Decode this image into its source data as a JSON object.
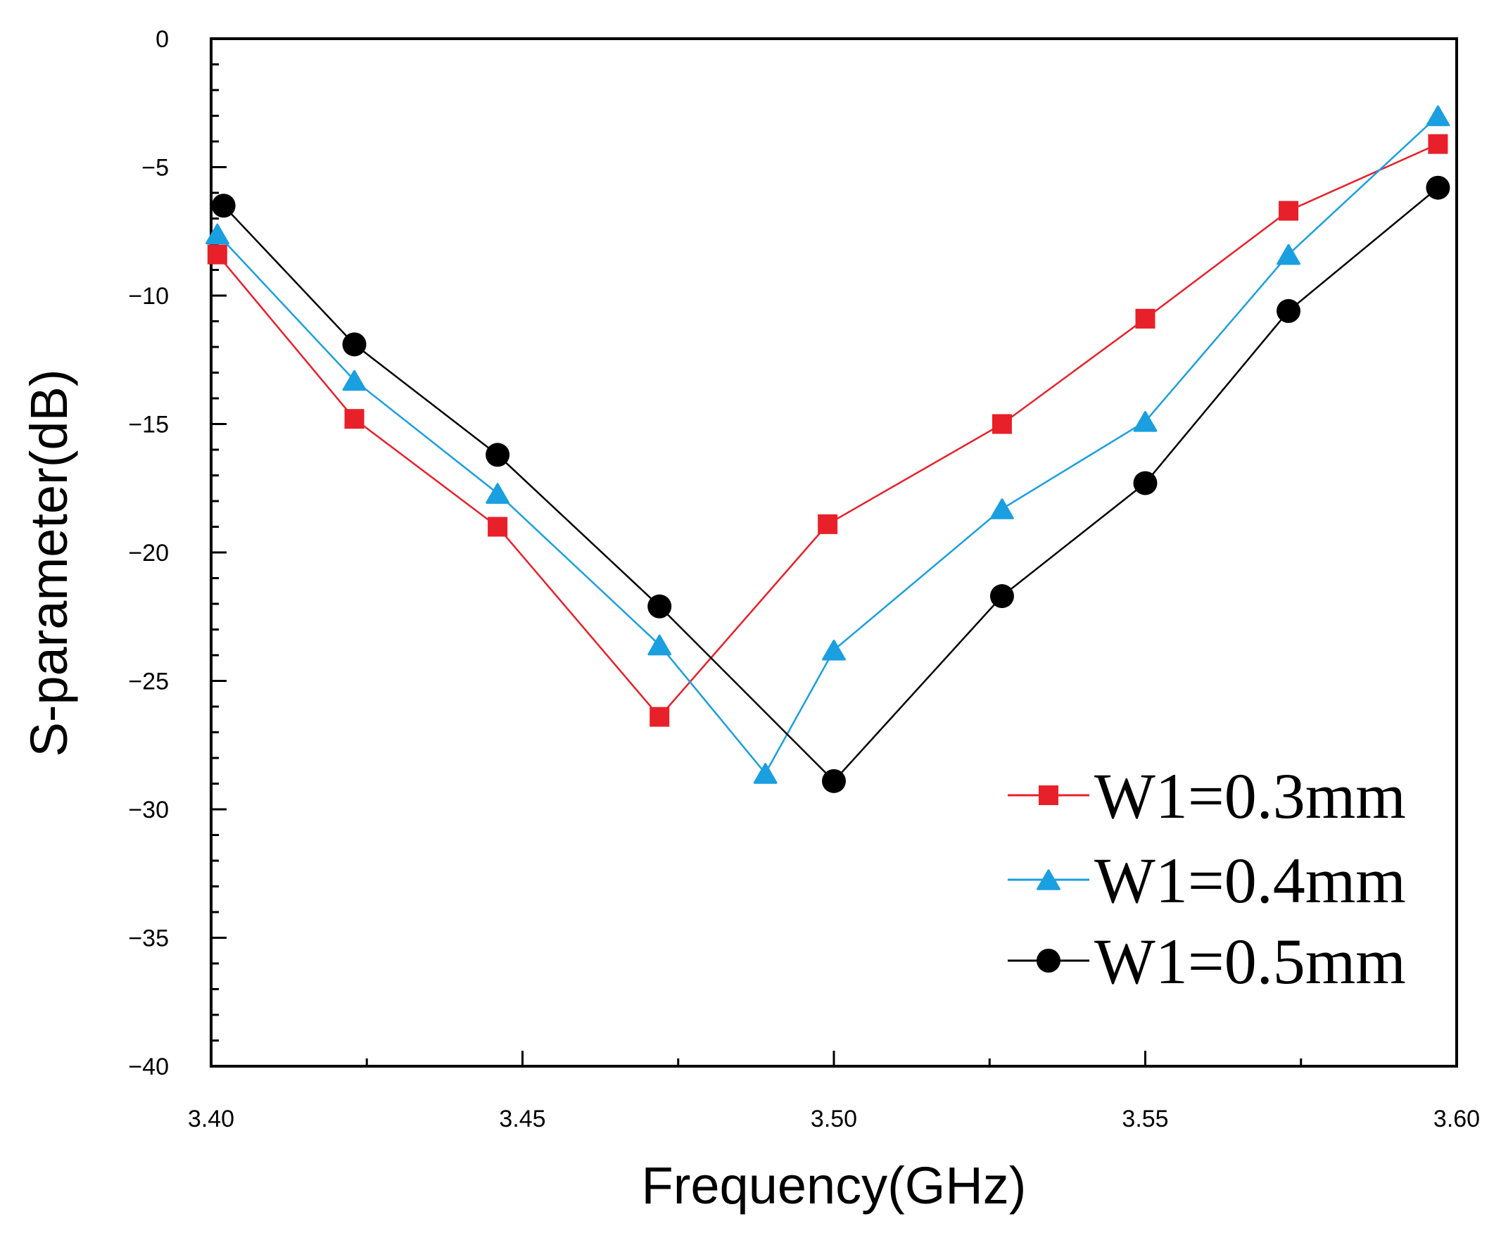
{
  "chart_data": {
    "type": "line",
    "title": "",
    "xlabel": "Frequency(GHz)",
    "ylabel": "S-parameter(dB)",
    "xlim": [
      3.4,
      3.6
    ],
    "ylim": [
      -40,
      0
    ],
    "xticks": [
      3.4,
      3.45,
      3.5,
      3.55,
      3.6
    ],
    "xtick_labels": [
      "3.40",
      "3.45",
      "3.50",
      "3.55",
      "3.60"
    ],
    "yticks": [
      0,
      -5,
      -10,
      -15,
      -20,
      -25,
      -30,
      -35,
      -40
    ],
    "ytick_labels": [
      "0",
      "−5",
      "−10",
      "−15",
      "−20",
      "−25",
      "−30",
      "−35",
      "−40"
    ],
    "grid": false,
    "legend_position": "bottom-right",
    "series": [
      {
        "name": "W1=0.3mm",
        "color": "#e8202a",
        "marker": "square",
        "x": [
          3.401,
          3.423,
          3.446,
          3.472,
          3.499,
          3.527,
          3.55,
          3.573,
          3.597
        ],
        "y": [
          -8.4,
          -14.8,
          -19.0,
          -26.4,
          -18.9,
          -15.0,
          -10.9,
          -6.7,
          -4.1
        ]
      },
      {
        "name": "W1=0.4mm",
        "color": "#1a9fe0",
        "marker": "triangle",
        "x": [
          3.401,
          3.423,
          3.446,
          3.472,
          3.489,
          3.5,
          3.527,
          3.55,
          3.573,
          3.597
        ],
        "y": [
          -7.6,
          -13.3,
          -17.7,
          -23.6,
          -28.6,
          -23.8,
          -18.3,
          -14.9,
          -8.4,
          -3.0
        ]
      },
      {
        "name": "W1=0.5mm",
        "color": "#000000",
        "marker": "circle",
        "x": [
          3.402,
          3.423,
          3.446,
          3.472,
          3.5,
          3.527,
          3.55,
          3.573,
          3.597
        ],
        "y": [
          -6.5,
          -11.9,
          -16.2,
          -22.1,
          -28.9,
          -21.7,
          -17.3,
          -10.6,
          -5.8
        ]
      }
    ]
  }
}
